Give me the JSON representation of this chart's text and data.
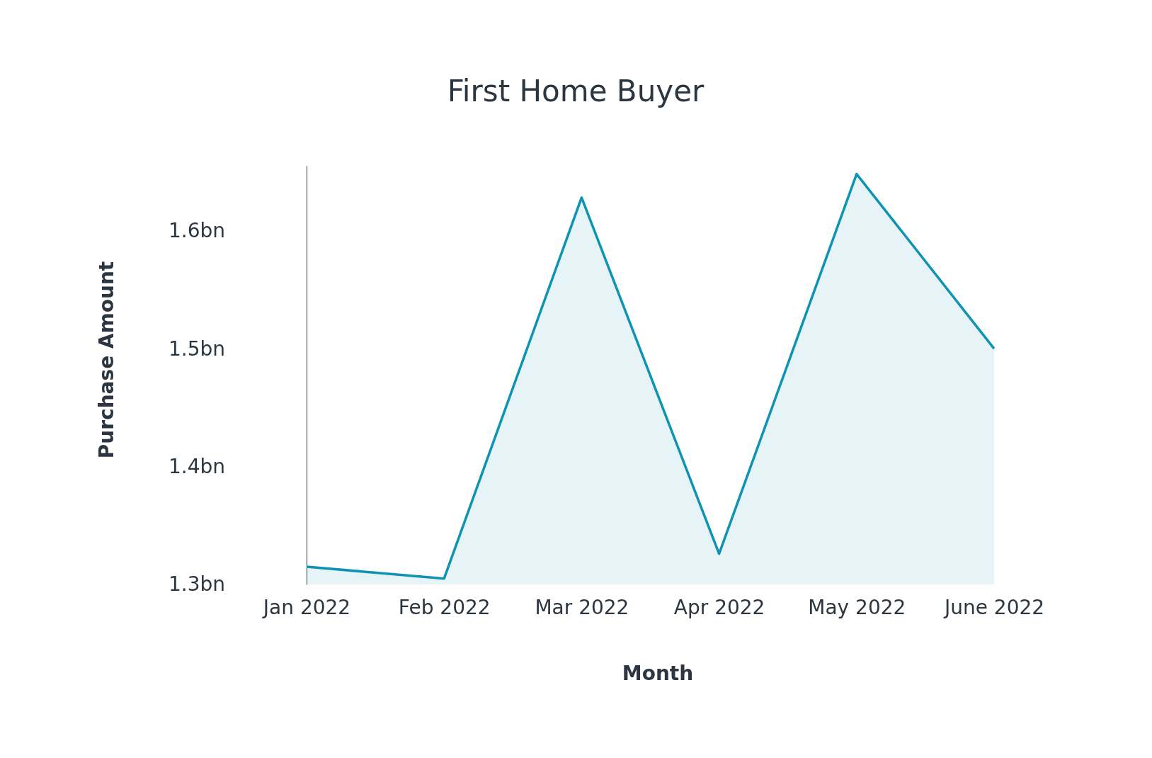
{
  "chart_data": {
    "type": "area",
    "title": "First Home Buyer",
    "xlabel": "Month",
    "ylabel": "Purchase Amount",
    "categories": [
      "Jan 2022",
      "Feb 2022",
      "Mar 2022",
      "Apr 2022",
      "May 2022",
      "June 2022"
    ],
    "series": [
      {
        "color": "#0e93b3",
        "values": [
          1.315,
          1.305,
          1.628,
          1.326,
          1.648,
          1.5
        ]
      }
    ],
    "ylim": [
      1.3,
      1.655
    ],
    "yticks": [
      {
        "value": 1.3,
        "label": "1.3bn"
      },
      {
        "value": 1.4,
        "label": "1.4bn"
      },
      {
        "value": 1.5,
        "label": "1.5bn"
      },
      {
        "value": 1.6,
        "label": "1.6bn"
      }
    ],
    "legend": false
  }
}
